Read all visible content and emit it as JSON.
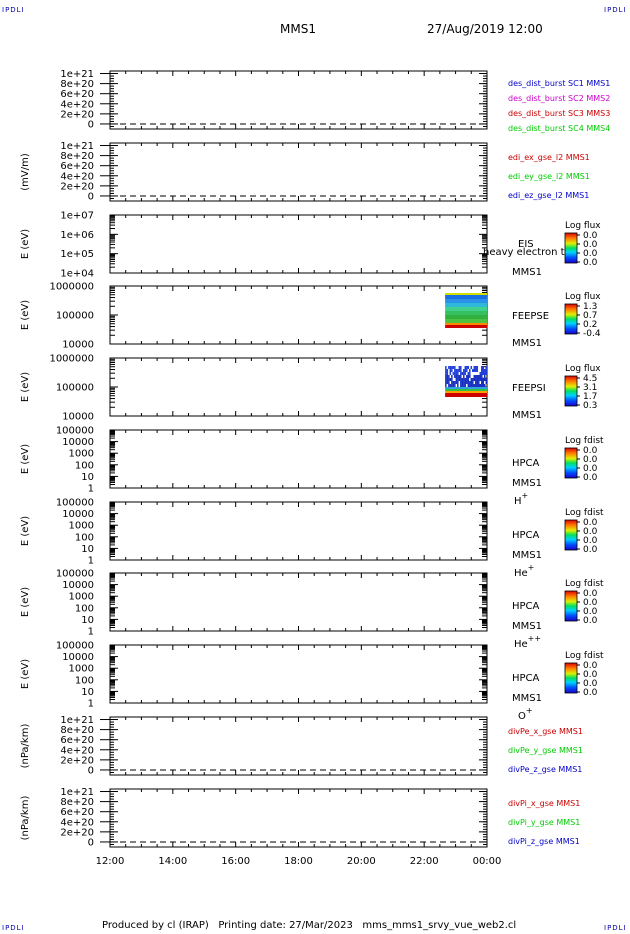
{
  "header": {
    "corner_label": "IPDLI",
    "title": "MMS1",
    "date": "27/Aug/2019 12:00"
  },
  "footer": {
    "text": "Produced by cl (IRAP)   Printing date: 27/Mar/2023   mms_mms1_srvy_vue_web2.cl"
  },
  "colors": {
    "blue": "#0000cc",
    "magenta": "#cc00cc",
    "red": "#cc0000",
    "green": "#00cc00"
  },
  "chart_data": {
    "type": "multi-panel time series",
    "x_axis": {
      "ticks": [
        "12:00",
        "14:00",
        "16:00",
        "18:00",
        "20:00",
        "22:00",
        "00:00"
      ],
      "range": [
        "12:00",
        "00:00"
      ]
    },
    "panels": [
      {
        "id": "dist",
        "kind": "line",
        "ylabel": "",
        "yticks": [
          "1e+21",
          "8e+20",
          "6e+20",
          "4e+20",
          "2e+20",
          "0"
        ],
        "ytick_values": [
          1e+21,
          8e+20,
          6e+20,
          4e+20,
          2e+20,
          0
        ],
        "ylim": [
          -1e+20,
          1.05e+21
        ],
        "zero_line": true,
        "legend": [
          {
            "label": "des_dist_burst SC1 MMS1",
            "color": "#0000cc"
          },
          {
            "label": "des_dist_burst SC2 MMS2",
            "color": "#cc00cc"
          },
          {
            "label": "des_dist_burst SC3 MMS3",
            "color": "#cc0000"
          },
          {
            "label": "des_dist_burst SC4 MMS4",
            "color": "#00cc00"
          }
        ]
      },
      {
        "id": "edi",
        "kind": "line",
        "ylabel": "(mV/m)",
        "yticks": [
          "1e+21",
          "8e+20",
          "6e+20",
          "4e+20",
          "2e+20",
          "0"
        ],
        "ytick_values": [
          1e+21,
          8e+20,
          6e+20,
          4e+20,
          2e+20,
          0
        ],
        "ylim": [
          -1e+20,
          1.05e+21
        ],
        "zero_line": true,
        "legend": [
          {
            "label": "edi_ex_gse_l2 MMS1",
            "color": "#cc0000"
          },
          {
            "label": "edi_ey_gse_l2 MMS1",
            "color": "#00cc00"
          },
          {
            "label": "edi_ez_gse_l2 MMS1",
            "color": "#0000cc"
          }
        ]
      },
      {
        "id": "eis",
        "kind": "spectrogram",
        "ylabel": "E (eV)",
        "yticks": [
          "1e+07",
          "1e+06",
          "1e+05",
          "1e+04"
        ],
        "ylog": [
          4,
          7
        ],
        "instrument": "EIS",
        "overlay_text": "heavy electron to",
        "spacecraft": "MMS1",
        "species": "",
        "colorbar_title": "Log flux",
        "colorbar_ticks": [
          "0.0",
          "0.0",
          "0.0",
          "0.0"
        ]
      },
      {
        "id": "feepse",
        "kind": "spectrogram",
        "ylabel": "E (eV)",
        "yticks": [
          "1000000",
          "100000",
          "10000"
        ],
        "ylog": [
          4,
          6
        ],
        "instrument": "FEEPSE",
        "spacecraft": "MMS1",
        "species": "",
        "colorbar_title": "Log flux",
        "colorbar_ticks": [
          "1.3",
          "0.7",
          "0.2",
          "-0.4"
        ],
        "data_start": "22:40",
        "data_end": "00:00"
      },
      {
        "id": "feepsi",
        "kind": "spectrogram",
        "ylabel": "E (eV)",
        "yticks": [
          "1000000",
          "100000",
          "10000"
        ],
        "ylog": [
          4,
          6
        ],
        "instrument": "FEEPSI",
        "spacecraft": "MMS1",
        "species": "",
        "colorbar_title": "Log flux",
        "colorbar_ticks": [
          "4.5",
          "3.1",
          "1.7",
          "0.3"
        ],
        "data_start": "22:40",
        "data_end": "00:00"
      },
      {
        "id": "hpca_h",
        "kind": "spectrogram",
        "ylabel": "E (eV)",
        "yticks": [
          "100000",
          "10000",
          "1000",
          "100",
          "10",
          "1"
        ],
        "ylog": [
          0,
          5
        ],
        "instrument": "HPCA",
        "spacecraft": "MMS1",
        "species": "H",
        "species_sup": "+",
        "colorbar_title": "Log fdist",
        "colorbar_ticks": [
          "0.0",
          "0.0",
          "0.0",
          "0.0"
        ]
      },
      {
        "id": "hpca_he",
        "kind": "spectrogram",
        "ylabel": "E (eV)",
        "yticks": [
          "100000",
          "10000",
          "1000",
          "100",
          "10",
          "1"
        ],
        "ylog": [
          0,
          5
        ],
        "instrument": "HPCA",
        "spacecraft": "MMS1",
        "species": "He",
        "species_sup": "+",
        "colorbar_title": "Log fdist",
        "colorbar_ticks": [
          "0.0",
          "0.0",
          "0.0",
          "0.0"
        ]
      },
      {
        "id": "hpca_he2",
        "kind": "spectrogram",
        "ylabel": "E (eV)",
        "yticks": [
          "100000",
          "10000",
          "1000",
          "100",
          "10",
          "1"
        ],
        "ylog": [
          0,
          5
        ],
        "instrument": "HPCA",
        "spacecraft": "MMS1",
        "species": "He",
        "species_sup": "++",
        "colorbar_title": "Log fdist",
        "colorbar_ticks": [
          "0.0",
          "0.0",
          "0.0",
          "0.0"
        ]
      },
      {
        "id": "hpca_o",
        "kind": "spectrogram",
        "ylabel": "E (eV)",
        "yticks": [
          "100000",
          "10000",
          "1000",
          "100",
          "10",
          "1"
        ],
        "ylog": [
          0,
          5
        ],
        "instrument": "HPCA",
        "spacecraft": "MMS1",
        "species": "O",
        "species_sup": "+",
        "colorbar_title": "Log fdist",
        "colorbar_ticks": [
          "0.0",
          "0.0",
          "0.0",
          "0.0"
        ]
      },
      {
        "id": "divpe",
        "kind": "line",
        "ylabel": "(nPa/km)",
        "yticks": [
          "1e+21",
          "8e+20",
          "6e+20",
          "4e+20",
          "2e+20",
          "0"
        ],
        "ytick_values": [
          1e+21,
          8e+20,
          6e+20,
          4e+20,
          2e+20,
          0
        ],
        "ylim": [
          -1e+20,
          1.05e+21
        ],
        "zero_line": true,
        "legend": [
          {
            "label": "divPe_x_gse MMS1",
            "color": "#cc0000"
          },
          {
            "label": "divPe_y_gse MMS1",
            "color": "#00cc00"
          },
          {
            "label": "divPe_z_gse MMS1",
            "color": "#0000cc"
          }
        ]
      },
      {
        "id": "divpi",
        "kind": "line",
        "ylabel": "(nPa/km)",
        "yticks": [
          "1e+21",
          "8e+20",
          "6e+20",
          "4e+20",
          "2e+20",
          "0"
        ],
        "ytick_values": [
          1e+21,
          8e+20,
          6e+20,
          4e+20,
          2e+20,
          0
        ],
        "ylim": [
          -1e+20,
          1.05e+21
        ],
        "zero_line": true,
        "legend": [
          {
            "label": "divPi_x_gse MMS1",
            "color": "#cc0000"
          },
          {
            "label": "divPi_y_gse MMS1",
            "color": "#00cc00"
          },
          {
            "label": "divPi_z_gse MMS1",
            "color": "#0000cc"
          }
        ]
      }
    ]
  }
}
